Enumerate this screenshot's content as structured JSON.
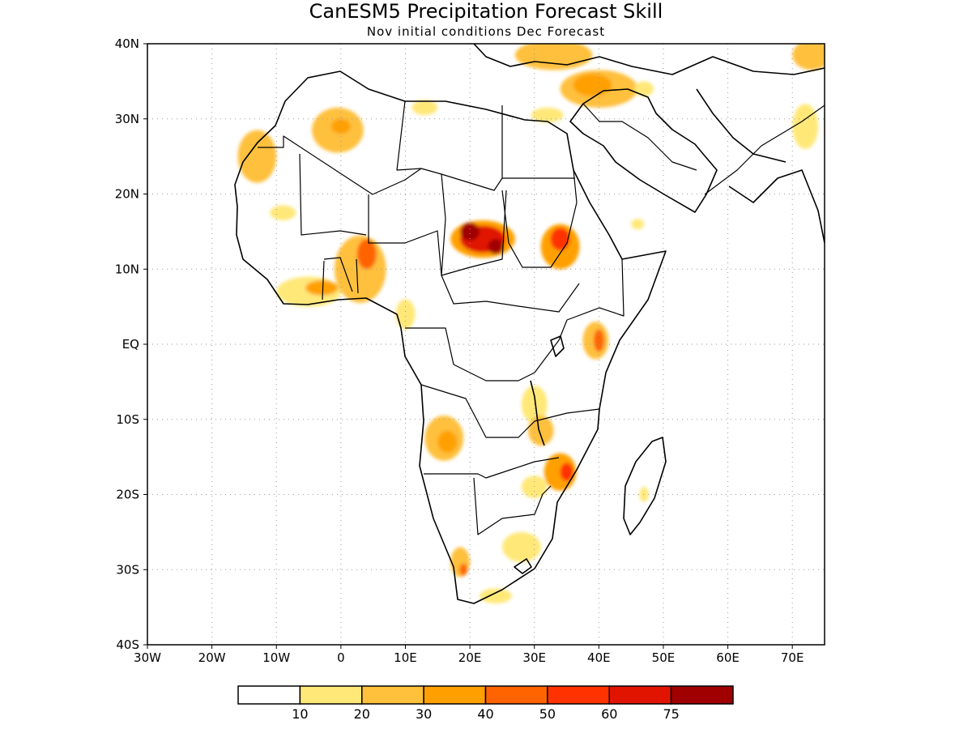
{
  "title": "CanESM5 Precipitation Forecast Skill",
  "subtitle": "Nov initial conditions  Dec Forecast",
  "map": {
    "lon_range": [
      -30,
      75
    ],
    "lat_range": [
      -40,
      40
    ],
    "lon_ticks": [
      {
        "value": -30,
        "label": "30W"
      },
      {
        "value": -20,
        "label": "20W"
      },
      {
        "value": -10,
        "label": "10W"
      },
      {
        "value": 0,
        "label": "0"
      },
      {
        "value": 10,
        "label": "10E"
      },
      {
        "value": 20,
        "label": "20E"
      },
      {
        "value": 30,
        "label": "30E"
      },
      {
        "value": 40,
        "label": "40E"
      },
      {
        "value": 50,
        "label": "50E"
      },
      {
        "value": 60,
        "label": "60E"
      },
      {
        "value": 70,
        "label": "70E"
      }
    ],
    "lat_ticks": [
      {
        "value": 40,
        "label": "40N"
      },
      {
        "value": 30,
        "label": "30N"
      },
      {
        "value": 20,
        "label": "20N"
      },
      {
        "value": 10,
        "label": "10N"
      },
      {
        "value": 0,
        "label": "EQ"
      },
      {
        "value": -10,
        "label": "10S"
      },
      {
        "value": -20,
        "label": "20S"
      },
      {
        "value": -30,
        "label": "30S"
      },
      {
        "value": -40,
        "label": "40S"
      }
    ]
  },
  "colorbar": {
    "colors": [
      "#ffffff",
      "#ffe878",
      "#ffc03c",
      "#ffa000",
      "#ff6400",
      "#ff3200",
      "#e11400",
      "#a00000"
    ],
    "labels": [
      "10",
      "20",
      "30",
      "40",
      "50",
      "60",
      "75"
    ]
  },
  "skill_regions": [
    {
      "name": "western-sahara-coast",
      "level": 2,
      "lon": -13,
      "lat": 25,
      "rx": 3,
      "ry": 3.5
    },
    {
      "name": "algeria-mali-north",
      "level": 2,
      "lon": -0.5,
      "lat": 28.5,
      "rx": 4,
      "ry": 3
    },
    {
      "name": "algeria-mali-north-core",
      "level": 3,
      "lon": 0,
      "lat": 29,
      "rx": 1.5,
      "ry": 1
    },
    {
      "name": "libya-north",
      "level": 1,
      "lon": 13,
      "lat": 31.5,
      "rx": 2,
      "ry": 1
    },
    {
      "name": "mauritania-south",
      "level": 1,
      "lon": -9,
      "lat": 17.5,
      "rx": 2,
      "ry": 1
    },
    {
      "name": "west-africa-coast",
      "level": 1,
      "lon": -5,
      "lat": 7,
      "rx": 5,
      "ry": 2
    },
    {
      "name": "west-africa-coast-core",
      "level": 3,
      "lon": -3,
      "lat": 7.5,
      "rx": 2.5,
      "ry": 1
    },
    {
      "name": "ghana-togo-benin",
      "level": 2,
      "lon": 3,
      "lat": 10,
      "rx": 4,
      "ry": 4.5
    },
    {
      "name": "ghana-togo-benin-core",
      "level": 4,
      "lon": 4,
      "lat": 12,
      "rx": 1.5,
      "ry": 2
    },
    {
      "name": "cameroon-coast",
      "level": 1,
      "lon": 10,
      "lat": 4,
      "rx": 1.5,
      "ry": 2
    },
    {
      "name": "chad-sudan",
      "level": 3,
      "lon": 22,
      "lat": 14,
      "rx": 5,
      "ry": 2.5
    },
    {
      "name": "chad-sudan-mid",
      "level": 6,
      "lon": 22,
      "lat": 14,
      "rx": 3.5,
      "ry": 1.8
    },
    {
      "name": "chad-sudan-core",
      "level": 7,
      "lon": 20,
      "lat": 15,
      "rx": 1.5,
      "ry": 1.2
    },
    {
      "name": "chad-sudan-core-east",
      "level": 7,
      "lon": 24,
      "lat": 13,
      "rx": 1.2,
      "ry": 1
    },
    {
      "name": "south-sudan-ethiopia",
      "level": 3,
      "lon": 34,
      "lat": 13,
      "rx": 3,
      "ry": 3
    },
    {
      "name": "south-sudan-ethiopia-core",
      "level": 5,
      "lon": 34,
      "lat": 14,
      "rx": 1.5,
      "ry": 1.5
    },
    {
      "name": "kenya-coast",
      "level": 2,
      "lon": 39.5,
      "lat": 0.5,
      "rx": 2,
      "ry": 2.5
    },
    {
      "name": "kenya-coast-core",
      "level": 4,
      "lon": 40,
      "lat": 0.5,
      "rx": 0.8,
      "ry": 1.5
    },
    {
      "name": "angola",
      "level": 2,
      "lon": 16,
      "lat": -12.5,
      "rx": 3,
      "ry": 3
    },
    {
      "name": "angola-core",
      "level": 3,
      "lon": 16.5,
      "lat": -13,
      "rx": 1.5,
      "ry": 1.5
    },
    {
      "name": "lake-tanganyika",
      "level": 1,
      "lon": 30,
      "lat": -8,
      "rx": 2,
      "ry": 2.5
    },
    {
      "name": "zambia-malawi",
      "level": 2,
      "lon": 31,
      "lat": -11.5,
      "rx": 2,
      "ry": 2
    },
    {
      "name": "mozambique",
      "level": 3,
      "lon": 34,
      "lat": -17,
      "rx": 2.5,
      "ry": 2.5
    },
    {
      "name": "mozambique-core",
      "level": 5,
      "lon": 35,
      "lat": -17,
      "rx": 1,
      "ry": 1.2
    },
    {
      "name": "zimbabwe-south",
      "level": 1,
      "lon": 30,
      "lat": -19,
      "rx": 2,
      "ry": 1.5
    },
    {
      "name": "madagascar-east",
      "level": 1,
      "lon": 47,
      "lat": -20,
      "rx": 0.7,
      "ry": 1
    },
    {
      "name": "south-africa-east",
      "level": 1,
      "lon": 28,
      "lat": -27,
      "rx": 3,
      "ry": 2
    },
    {
      "name": "south-africa-west",
      "level": 2,
      "lon": 18.5,
      "lat": -29,
      "rx": 1.5,
      "ry": 2
    },
    {
      "name": "south-africa-west-core",
      "level": 4,
      "lon": 19,
      "lat": -30,
      "rx": 0.6,
      "ry": 0.8
    },
    {
      "name": "south-africa-cape",
      "level": 1,
      "lon": 24,
      "lat": -33.5,
      "rx": 2.5,
      "ry": 1
    },
    {
      "name": "arabia-sw",
      "level": 1,
      "lon": 46,
      "lat": 16,
      "rx": 1,
      "ry": 0.7
    },
    {
      "name": "mediterranean-north",
      "level": 2,
      "lon": 33,
      "lat": 38.5,
      "rx": 6,
      "ry": 2
    },
    {
      "name": "levant-iraq",
      "level": 2,
      "lon": 40,
      "lat": 34,
      "rx": 6,
      "ry": 2.5
    },
    {
      "name": "levant-iraq-core",
      "level": 3,
      "lon": 39,
      "lat": 34.5,
      "rx": 3,
      "ry": 1.5
    },
    {
      "name": "persian-gulf-north",
      "level": 1,
      "lon": 47,
      "lat": 34,
      "rx": 1.5,
      "ry": 1
    },
    {
      "name": "egypt-north",
      "level": 1,
      "lon": 32,
      "lat": 30.5,
      "rx": 2.5,
      "ry": 1
    },
    {
      "name": "caspian-south",
      "level": 2,
      "lon": 73,
      "lat": 38.5,
      "rx": 3,
      "ry": 2
    },
    {
      "name": "pakistan",
      "level": 1,
      "lon": 72,
      "lat": 29,
      "rx": 2,
      "ry": 3
    }
  ]
}
